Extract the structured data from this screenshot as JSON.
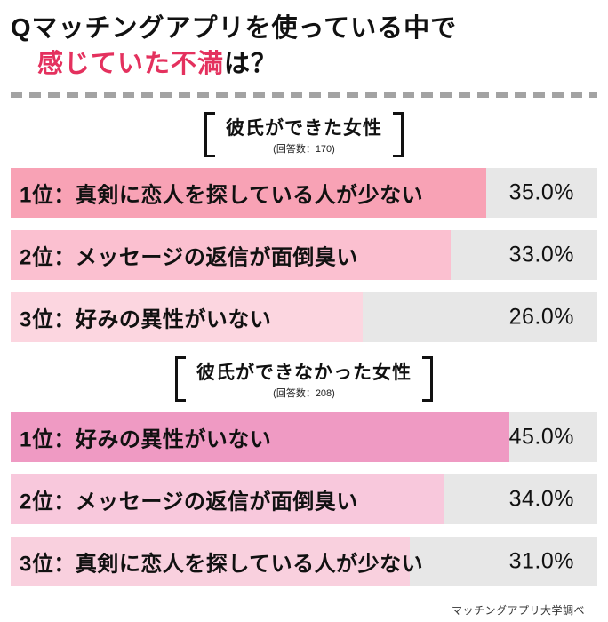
{
  "title": {
    "line1": "Qマッチングアプリを使っている中で",
    "line2_highlight": "感じていた不満",
    "line2_rest": "は？"
  },
  "footer": "マッチングアプリ大学調べ",
  "colors": {
    "highlight": "#e4315e",
    "bar_background": "#e7e7e7"
  },
  "chart_data": {
    "type": "bar",
    "title": "Qマッチングアプリを使っている中で感じていた不満は？",
    "legend_position": "none",
    "grid": false,
    "groups": [
      {
        "header": "彼氏ができた女性",
        "sub": "(回答数：170)",
        "bars": [
          {
            "label": "1位：真剣に恋人を探している人が少ない",
            "value": 35.0,
            "display": "35.0%",
            "fill_pct": 81,
            "color": "#f8a2b5"
          },
          {
            "label": "2位：メッセージの返信が面倒臭い",
            "value": 33.0,
            "display": "33.0%",
            "fill_pct": 75,
            "color": "#fbc0d0"
          },
          {
            "label": "3位：好みの異性がいない",
            "value": 26.0,
            "display": "26.0%",
            "fill_pct": 60,
            "color": "#fcd6e0"
          }
        ]
      },
      {
        "header": "彼氏ができなかった女性",
        "sub": "(回答数：208)",
        "bars": [
          {
            "label": "1位：好みの異性がいない",
            "value": 45.0,
            "display": "45.0%",
            "fill_pct": 85,
            "color": "#ef9ac3"
          },
          {
            "label": "2位：メッセージの返信が面倒臭い",
            "value": 34.0,
            "display": "34.0%",
            "fill_pct": 74,
            "color": "#f8c8dc"
          },
          {
            "label": "3位：真剣に恋人を探している人が少ない",
            "value": 31.0,
            "display": "31.0%",
            "fill_pct": 68,
            "color": "#f9d0de"
          }
        ]
      }
    ]
  }
}
